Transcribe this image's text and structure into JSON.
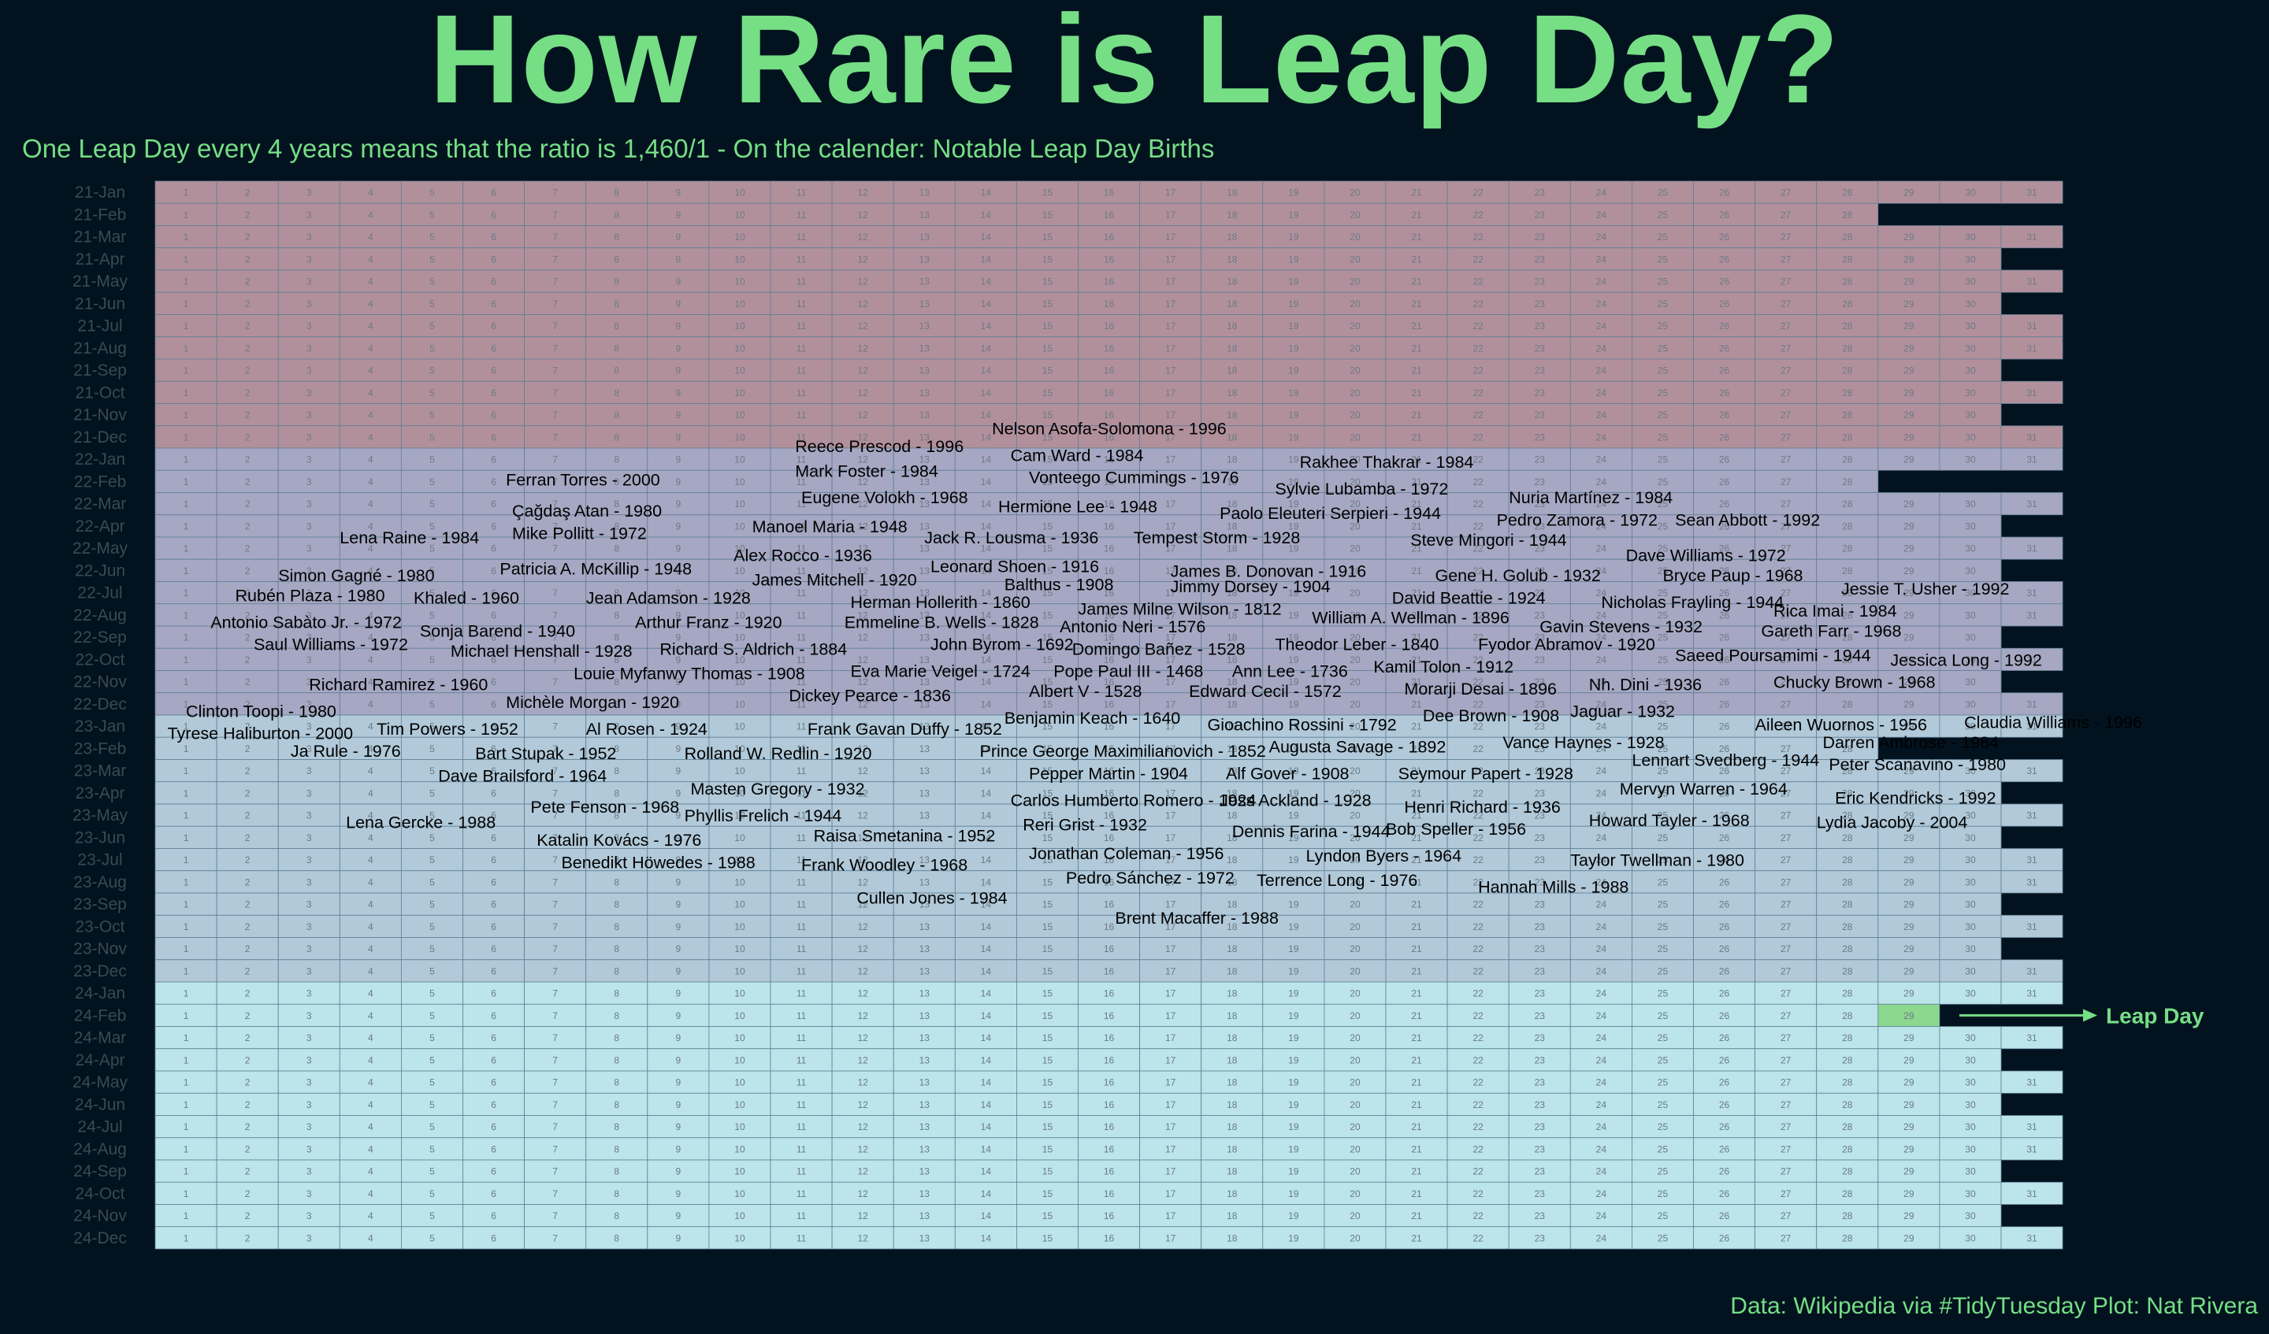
{
  "title": "How Rare is Leap Day?",
  "subtitle": "One Leap Day every 4 years means that the ratio is 1,460/1 - On the calender: Notable Leap Day Births",
  "caption": "Data: Wikipedia via #TidyTuesday  Plot: Nat Rivera",
  "colors": {
    "accent": "#76de85",
    "background": "#02131f",
    "year2021": "#b2909b",
    "year2022": "#a6a7c2",
    "year2023": "#b1c9d9",
    "year2024": "#bbe5ea",
    "leap_cell": "#8cd88e"
  },
  "chart_data": {
    "type": "heatmap",
    "title": "How Rare is Leap Day?",
    "x_days": [
      1,
      2,
      3,
      4,
      5,
      6,
      7,
      8,
      9,
      10,
      11,
      12,
      13,
      14,
      15,
      16,
      17,
      18,
      19,
      20,
      21,
      22,
      23,
      24,
      25,
      26,
      27,
      28,
      29,
      30,
      31
    ],
    "rows": [
      {
        "label": "21-Jan",
        "days": 31
      },
      {
        "label": "21-Feb",
        "days": 28
      },
      {
        "label": "21-Mar",
        "days": 31
      },
      {
        "label": "21-Apr",
        "days": 30
      },
      {
        "label": "21-May",
        "days": 31
      },
      {
        "label": "21-Jun",
        "days": 30
      },
      {
        "label": "21-Jul",
        "days": 31
      },
      {
        "label": "21-Aug",
        "days": 31
      },
      {
        "label": "21-Sep",
        "days": 30
      },
      {
        "label": "21-Oct",
        "days": 31
      },
      {
        "label": "21-Nov",
        "days": 30
      },
      {
        "label": "21-Dec",
        "days": 31
      },
      {
        "label": "22-Jan",
        "days": 31
      },
      {
        "label": "22-Feb",
        "days": 28
      },
      {
        "label": "22-Mar",
        "days": 31
      },
      {
        "label": "22-Apr",
        "days": 30
      },
      {
        "label": "22-May",
        "days": 31
      },
      {
        "label": "22-Jun",
        "days": 30
      },
      {
        "label": "22-Jul",
        "days": 31
      },
      {
        "label": "22-Aug",
        "days": 31
      },
      {
        "label": "22-Sep",
        "days": 30
      },
      {
        "label": "22-Oct",
        "days": 31
      },
      {
        "label": "22-Nov",
        "days": 30
      },
      {
        "label": "22-Dec",
        "days": 31
      },
      {
        "label": "23-Jan",
        "days": 31
      },
      {
        "label": "23-Feb",
        "days": 28
      },
      {
        "label": "23-Mar",
        "days": 31
      },
      {
        "label": "23-Apr",
        "days": 30
      },
      {
        "label": "23-May",
        "days": 31
      },
      {
        "label": "23-Jun",
        "days": 30
      },
      {
        "label": "23-Jul",
        "days": 31
      },
      {
        "label": "23-Aug",
        "days": 31
      },
      {
        "label": "23-Sep",
        "days": 30
      },
      {
        "label": "23-Oct",
        "days": 31
      },
      {
        "label": "23-Nov",
        "days": 30
      },
      {
        "label": "23-Dec",
        "days": 31
      },
      {
        "label": "24-Jan",
        "days": 31
      },
      {
        "label": "24-Feb",
        "days": 29
      },
      {
        "label": "24-Mar",
        "days": 31
      },
      {
        "label": "24-Apr",
        "days": 30
      },
      {
        "label": "24-May",
        "days": 31
      },
      {
        "label": "24-Jun",
        "days": 30
      },
      {
        "label": "24-Jul",
        "days": 31
      },
      {
        "label": "24-Aug",
        "days": 31
      },
      {
        "label": "24-Sep",
        "days": 30
      },
      {
        "label": "24-Oct",
        "days": 31
      },
      {
        "label": "24-Nov",
        "days": 30
      },
      {
        "label": "24-Dec",
        "days": 31
      }
    ],
    "highlight": {
      "row": "24-Feb",
      "day": 29,
      "label": "Leap Day"
    },
    "annotations": [
      {
        "text": "Nelson Asofa-Solomona - 1996",
        "x": 13.6,
        "y": 11.1
      },
      {
        "text": "Reece Prescod - 1996",
        "x": 10.4,
        "y": 11.9
      },
      {
        "text": "Cam Ward - 1984",
        "x": 13.9,
        "y": 12.3
      },
      {
        "text": "Rakhee Thakrar - 1984",
        "x": 18.6,
        "y": 12.6
      },
      {
        "text": "Mark Foster - 1984",
        "x": 10.4,
        "y": 13.0
      },
      {
        "text": "Vonteego Cummings - 1976",
        "x": 14.2,
        "y": 13.3
      },
      {
        "text": "Ferran Torres - 2000",
        "x": 5.7,
        "y": 13.4
      },
      {
        "text": "Sylvie Lubamba - 1972",
        "x": 18.2,
        "y": 13.8
      },
      {
        "text": "Eugene Volokh - 1968",
        "x": 10.5,
        "y": 14.2
      },
      {
        "text": "Nuria Martínez - 1984",
        "x": 22.0,
        "y": 14.2
      },
      {
        "text": "Hermione Lee - 1948",
        "x": 13.7,
        "y": 14.6
      },
      {
        "text": "Çağdaş Atan - 1980",
        "x": 5.8,
        "y": 14.8
      },
      {
        "text": "Paolo Eleuteri Serpieri - 1944",
        "x": 17.3,
        "y": 14.9
      },
      {
        "text": "Pedro Zamora - 1972",
        "x": 21.8,
        "y": 15.2
      },
      {
        "text": "Sean Abbott - 1992",
        "x": 24.7,
        "y": 15.2
      },
      {
        "text": "Manoel Maria - 1948",
        "x": 9.7,
        "y": 15.5
      },
      {
        "text": "Mike Pollitt - 1972",
        "x": 5.8,
        "y": 15.8
      },
      {
        "text": "Lena Raine - 1984",
        "x": 3.0,
        "y": 16.0
      },
      {
        "text": "Jack R. Lousma - 1936",
        "x": 12.5,
        "y": 16.0
      },
      {
        "text": "Tempest Storm - 1928",
        "x": 15.9,
        "y": 16.0
      },
      {
        "text": "Steve Mingori - 1944",
        "x": 20.4,
        "y": 16.1
      },
      {
        "text": "Alex Rocco - 1936",
        "x": 9.4,
        "y": 16.8
      },
      {
        "text": "Dave Williams - 1972",
        "x": 23.9,
        "y": 16.8
      },
      {
        "text": "Leonard Shoen - 1916",
        "x": 12.6,
        "y": 17.3
      },
      {
        "text": "Patricia A. McKillip - 1948",
        "x": 5.6,
        "y": 17.4
      },
      {
        "text": "James B. Donovan - 1916",
        "x": 16.5,
        "y": 17.5
      },
      {
        "text": "Simon Gagné - 1980",
        "x": 2.0,
        "y": 17.7
      },
      {
        "text": "Gene H. Golub - 1932",
        "x": 20.8,
        "y": 17.7
      },
      {
        "text": "Bryce Paup - 1968",
        "x": 24.5,
        "y": 17.7
      },
      {
        "text": "James Mitchell - 1920",
        "x": 9.7,
        "y": 17.9
      },
      {
        "text": "Balthus - 1908",
        "x": 13.8,
        "y": 18.1
      },
      {
        "text": "Jimmy Dorsey - 1904",
        "x": 16.5,
        "y": 18.2
      },
      {
        "text": "Jessie T. Usher - 1992",
        "x": 27.4,
        "y": 18.3
      },
      {
        "text": "Rubén Plaza - 1980",
        "x": 1.3,
        "y": 18.6
      },
      {
        "text": "Khaled - 1960",
        "x": 4.2,
        "y": 18.7
      },
      {
        "text": "Jean Adamson - 1928",
        "x": 7.0,
        "y": 18.7
      },
      {
        "text": "David Beattie - 1924",
        "x": 20.1,
        "y": 18.7
      },
      {
        "text": "Herman Hollerith - 1860",
        "x": 11.3,
        "y": 18.9
      },
      {
        "text": "Nicholas Frayling - 1944",
        "x": 23.5,
        "y": 18.9
      },
      {
        "text": "James Milne Wilson - 1812",
        "x": 15.0,
        "y": 19.2
      },
      {
        "text": "Rica Imai - 1984",
        "x": 26.3,
        "y": 19.3
      },
      {
        "text": "William A. Wellman - 1896",
        "x": 18.8,
        "y": 19.6
      },
      {
        "text": "Antonio Sabàto Jr. - 1972",
        "x": 0.9,
        "y": 19.8
      },
      {
        "text": "Arthur Franz - 1920",
        "x": 7.8,
        "y": 19.8
      },
      {
        "text": "Emmeline B. Wells - 1828",
        "x": 11.2,
        "y": 19.8
      },
      {
        "text": "Antonio Neri - 1576",
        "x": 14.7,
        "y": 20.0
      },
      {
        "text": "Gavin Stevens - 1932",
        "x": 22.5,
        "y": 20.0
      },
      {
        "text": "Sonja Barend - 1940",
        "x": 4.3,
        "y": 20.2
      },
      {
        "text": "Gareth Farr - 1968",
        "x": 26.1,
        "y": 20.2
      },
      {
        "text": "Saul Williams - 1972",
        "x": 1.6,
        "y": 20.8
      },
      {
        "text": "John Byrom - 1692",
        "x": 12.6,
        "y": 20.8
      },
      {
        "text": "Theodor Leber - 1840",
        "x": 18.2,
        "y": 20.8
      },
      {
        "text": "Fyodor Abramov - 1920",
        "x": 21.5,
        "y": 20.8
      },
      {
        "text": "Domingo Bañez - 1528",
        "x": 14.9,
        "y": 21.0
      },
      {
        "text": "Michael Henshall - 1928",
        "x": 4.8,
        "y": 21.1
      },
      {
        "text": "Richard S. Aldrich - 1884",
        "x": 8.2,
        "y": 21.0
      },
      {
        "text": "Saeed Poursamimi - 1944",
        "x": 24.7,
        "y": 21.3
      },
      {
        "text": "Jessica Long - 1992",
        "x": 28.2,
        "y": 21.5
      },
      {
        "text": "Kamil Tolon - 1912",
        "x": 19.8,
        "y": 21.8
      },
      {
        "text": "Eva Marie Veigel - 1724",
        "x": 11.3,
        "y": 22.0
      },
      {
        "text": "Pope Paul III - 1468",
        "x": 14.6,
        "y": 22.0
      },
      {
        "text": "Ann Lee - 1736",
        "x": 17.5,
        "y": 22.0
      },
      {
        "text": "Louie Myfanwy Thomas - 1908",
        "x": 6.8,
        "y": 22.1
      },
      {
        "text": "Richard Ramirez - 1960",
        "x": 2.5,
        "y": 22.6
      },
      {
        "text": "Chucky Brown - 1968",
        "x": 26.3,
        "y": 22.5
      },
      {
        "text": "Nh. Dini - 1936",
        "x": 23.3,
        "y": 22.6
      },
      {
        "text": "Morarji Desai - 1896",
        "x": 20.3,
        "y": 22.8
      },
      {
        "text": "Albert V - 1528",
        "x": 14.2,
        "y": 22.9
      },
      {
        "text": "Edward Cecil - 1572",
        "x": 16.8,
        "y": 22.9
      },
      {
        "text": "Dickey Pearce - 1836",
        "x": 10.3,
        "y": 23.1
      },
      {
        "text": "Michèle Morgan - 1920",
        "x": 5.7,
        "y": 23.4
      },
      {
        "text": "Clinton Toopi - 1980",
        "x": 0.5,
        "y": 23.8
      },
      {
        "text": "Jaguar - 1932",
        "x": 23.0,
        "y": 23.8
      },
      {
        "text": "Dee Brown - 1908",
        "x": 20.6,
        "y": 24.0
      },
      {
        "text": "Benjamin Keach - 1640",
        "x": 13.8,
        "y": 24.1
      },
      {
        "text": "Claudia Williams - 1996",
        "x": 29.4,
        "y": 24.3
      },
      {
        "text": "Aileen Wuornos - 1956",
        "x": 26.0,
        "y": 24.4
      },
      {
        "text": "Gioachino Rossini - 1792",
        "x": 17.1,
        "y": 24.4
      },
      {
        "text": "Frank Gavan Duffy - 1852",
        "x": 10.6,
        "y": 24.6
      },
      {
        "text": "Tim Powers - 1952",
        "x": 3.6,
        "y": 24.6
      },
      {
        "text": "Al Rosen - 1924",
        "x": 7.0,
        "y": 24.6
      },
      {
        "text": "Tyrese Haliburton - 2000",
        "x": 0.2,
        "y": 24.8
      },
      {
        "text": "Vance Haynes - 1928",
        "x": 21.9,
        "y": 25.2
      },
      {
        "text": "Darren Ambrose - 1984",
        "x": 27.1,
        "y": 25.2
      },
      {
        "text": "Augusta Savage - 1892",
        "x": 18.1,
        "y": 25.4
      },
      {
        "text": "Prince George Maximilianovich - 1852",
        "x": 13.4,
        "y": 25.6
      },
      {
        "text": "Ja Rule - 1976",
        "x": 2.2,
        "y": 25.6
      },
      {
        "text": "Bart Stupak - 1952",
        "x": 5.2,
        "y": 25.7
      },
      {
        "text": "Rolland W. Redlin - 1920",
        "x": 8.6,
        "y": 25.7
      },
      {
        "text": "Lennart Svedberg - 1944",
        "x": 24.0,
        "y": 26.0
      },
      {
        "text": "Peter Scanavino - 1980",
        "x": 27.2,
        "y": 26.2
      },
      {
        "text": "Pepper Martin - 1904",
        "x": 14.2,
        "y": 26.6
      },
      {
        "text": "Alf Gover - 1908",
        "x": 17.4,
        "y": 26.6
      },
      {
        "text": "Seymour Papert - 1928",
        "x": 20.2,
        "y": 26.6
      },
      {
        "text": "Dave Brailsford - 1964",
        "x": 4.6,
        "y": 26.7
      },
      {
        "text": "Masten Gregory - 1932",
        "x": 8.7,
        "y": 27.3
      },
      {
        "text": "Mervyn Warren - 1964",
        "x": 23.8,
        "y": 27.3
      },
      {
        "text": "Carlos Humberto Romero - 1924",
        "x": 13.9,
        "y": 27.8
      },
      {
        "text": "Joss Ackland - 1928",
        "x": 17.3,
        "y": 27.8
      },
      {
        "text": "Eric Kendricks - 1992",
        "x": 27.3,
        "y": 27.7
      },
      {
        "text": "Pete Fenson - 1968",
        "x": 6.1,
        "y": 28.1
      },
      {
        "text": "Henri Richard - 1936",
        "x": 20.3,
        "y": 28.1
      },
      {
        "text": "Phyllis Frelich - 1944",
        "x": 8.6,
        "y": 28.5
      },
      {
        "text": "Lena Gercke - 1988",
        "x": 3.1,
        "y": 28.8
      },
      {
        "text": "Howard Tayler - 1968",
        "x": 23.3,
        "y": 28.7
      },
      {
        "text": "Lydia Jacoby - 2004",
        "x": 27.0,
        "y": 28.8
      },
      {
        "text": "Reri Grist - 1932",
        "x": 14.1,
        "y": 28.9
      },
      {
        "text": "Dennis Farina - 1944",
        "x": 17.5,
        "y": 29.2
      },
      {
        "text": "Bob Speller - 1956",
        "x": 20.0,
        "y": 29.1
      },
      {
        "text": "Raisa Smetanina - 1952",
        "x": 10.7,
        "y": 29.4
      },
      {
        "text": "Katalin Kovács - 1976",
        "x": 6.2,
        "y": 29.6
      },
      {
        "text": "Jonathan Coleman - 1956",
        "x": 14.2,
        "y": 30.2
      },
      {
        "text": "Lyndon Byers - 1964",
        "x": 18.7,
        "y": 30.3
      },
      {
        "text": "Taylor Twellman - 1980",
        "x": 23.0,
        "y": 30.5
      },
      {
        "text": "Benedikt Höwedes - 1988",
        "x": 6.6,
        "y": 30.6
      },
      {
        "text": "Frank Woodley - 1968",
        "x": 10.5,
        "y": 30.7
      },
      {
        "text": "Pedro Sánchez - 1972",
        "x": 14.8,
        "y": 31.3
      },
      {
        "text": "Terrence Long - 1976",
        "x": 17.9,
        "y": 31.4
      },
      {
        "text": "Hannah Mills - 1988",
        "x": 21.5,
        "y": 31.7
      },
      {
        "text": "Cullen Jones - 1984",
        "x": 11.4,
        "y": 32.2
      },
      {
        "text": "Brent Macaffer - 1988",
        "x": 15.6,
        "y": 33.1
      }
    ]
  }
}
